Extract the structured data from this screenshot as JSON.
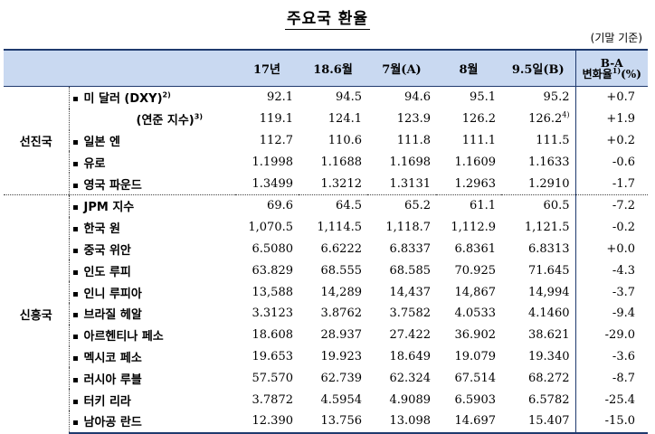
{
  "title": "주요국 환율",
  "unit": "(기말 기준)",
  "header": {
    "col1": "17년",
    "col2": "18.6월",
    "col3": "7월(A)",
    "col4": "8월",
    "col5": "9.5일(B)",
    "col6_line1": "B-A",
    "col6_line2": "변화율",
    "col6_sup": "1)",
    "col6_unit": "(%)"
  },
  "groups": {
    "advanced": "선진국",
    "emerging": "신흥국"
  },
  "rows": [
    {
      "label": "미 달러 (DXY)",
      "sup": "2)",
      "bullet": true,
      "v": [
        "92.1",
        "94.5",
        "94.6",
        "95.1",
        "95.2"
      ],
      "d": "+0.7"
    },
    {
      "label": "(연준 지수)",
      "sup": "3)",
      "bullet": false,
      "v": [
        "119.1",
        "124.1",
        "123.9",
        "126.2",
        "126.2"
      ],
      "last_sup": "4)",
      "d": "+1.9"
    },
    {
      "label": "일본 엔",
      "bullet": true,
      "v": [
        "112.7",
        "110.6",
        "111.8",
        "111.1",
        "111.5"
      ],
      "d": "+0.2"
    },
    {
      "label": "유로",
      "bullet": true,
      "v": [
        "1.1998",
        "1.1688",
        "1.1698",
        "1.1609",
        "1.1633"
      ],
      "d": "-0.6"
    },
    {
      "label": "영국 파운드",
      "bullet": true,
      "v": [
        "1.3499",
        "1.3212",
        "1.3131",
        "1.2963",
        "1.2910"
      ],
      "d": "-1.7"
    },
    {
      "label": "JPM 지수",
      "bullet": true,
      "v": [
        "69.6",
        "64.5",
        "65.2",
        "61.1",
        "60.5"
      ],
      "d": "-7.2"
    },
    {
      "label": "한국 원",
      "bullet": true,
      "v": [
        "1,070.5",
        "1,114.5",
        "1,118.7",
        "1,112.9",
        "1,121.5"
      ],
      "d": "-0.2"
    },
    {
      "label": "중국 위안",
      "bullet": true,
      "v": [
        "6.5080",
        "6.6222",
        "6.8337",
        "6.8361",
        "6.8313"
      ],
      "d": "+0.0"
    },
    {
      "label": "인도 루피",
      "bullet": true,
      "v": [
        "63.829",
        "68.555",
        "68.585",
        "70.925",
        "71.645"
      ],
      "d": "-4.3"
    },
    {
      "label": "인니 루피아",
      "bullet": true,
      "v": [
        "13,588",
        "14,289",
        "14,437",
        "14,867",
        "14,994"
      ],
      "d": "-3.7"
    },
    {
      "label": "브라질 헤알",
      "bullet": true,
      "v": [
        "3.3123",
        "3.8762",
        "3.7582",
        "4.0533",
        "4.1460"
      ],
      "d": "-9.4"
    },
    {
      "label": "아르헨티나 페소",
      "bullet": true,
      "v": [
        "18.608",
        "28.937",
        "27.422",
        "36.902",
        "38.621"
      ],
      "d": "-29.0"
    },
    {
      "label": "멕시코 페소",
      "bullet": true,
      "v": [
        "19.653",
        "19.923",
        "18.649",
        "19.079",
        "19.340"
      ],
      "d": "-3.6"
    },
    {
      "label": "러시아 루블",
      "bullet": true,
      "v": [
        "57.570",
        "62.739",
        "62.324",
        "67.514",
        "68.272"
      ],
      "d": "-8.7"
    },
    {
      "label": "터키 리라",
      "bullet": true,
      "v": [
        "3.7872",
        "4.5954",
        "4.9089",
        "6.5903",
        "6.5782"
      ],
      "d": "-25.4"
    },
    {
      "label": "남아공 란드",
      "bullet": true,
      "v": [
        "12.390",
        "13.756",
        "13.098",
        "14.697",
        "15.407"
      ],
      "d": "-15.0"
    }
  ]
}
